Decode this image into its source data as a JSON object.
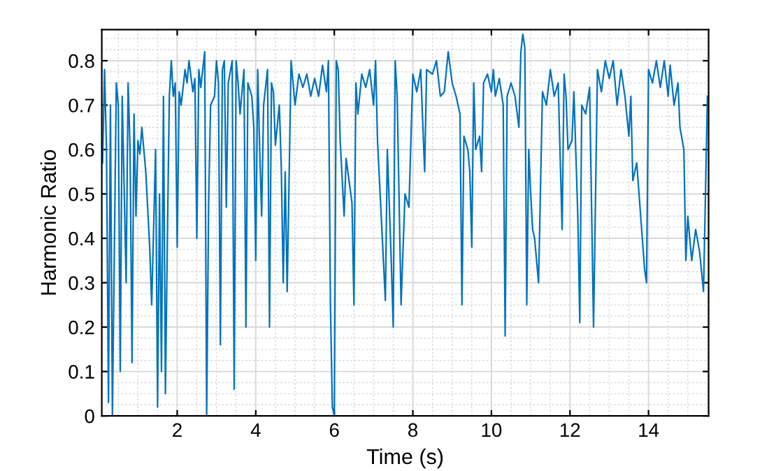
{
  "chart_data": {
    "type": "line",
    "xlabel": "Time (s)",
    "ylabel": "Harmonic Ratio",
    "xlim": [
      0.08,
      15.53
    ],
    "ylim": [
      0,
      0.87
    ],
    "xticks": [
      2,
      4,
      6,
      8,
      10,
      12,
      14
    ],
    "yticks": [
      0,
      0.1,
      0.2,
      0.3,
      0.4,
      0.5,
      0.6,
      0.7,
      0.8
    ],
    "grid": true,
    "marker": "none",
    "line_style": "solid",
    "series": [
      {
        "color": "#0072bd",
        "x": [
          0.1,
          0.15,
          0.2,
          0.25,
          0.3,
          0.35,
          0.45,
          0.5,
          0.55,
          0.6,
          0.7,
          0.75,
          0.8,
          0.85,
          0.9,
          0.95,
          1.0,
          1.05,
          1.1,
          1.2,
          1.3,
          1.35,
          1.45,
          1.5,
          1.55,
          1.6,
          1.65,
          1.7,
          1.75,
          1.8,
          1.85,
          1.9,
          1.95,
          2.0,
          2.05,
          2.1,
          2.2,
          2.25,
          2.3,
          2.4,
          2.45,
          2.5,
          2.55,
          2.6,
          2.7,
          2.75,
          2.8,
          2.85,
          2.95,
          3.0,
          3.05,
          3.1,
          3.15,
          3.2,
          3.25,
          3.3,
          3.4,
          3.45,
          3.5,
          3.55,
          3.6,
          3.7,
          3.75,
          3.8,
          3.9,
          3.95,
          4.0,
          4.05,
          4.1,
          4.15,
          4.2,
          4.3,
          4.35,
          4.4,
          4.45,
          4.5,
          4.6,
          4.65,
          4.7,
          4.75,
          4.8,
          4.9,
          4.95,
          5.0,
          5.1,
          5.2,
          5.3,
          5.4,
          5.5,
          5.6,
          5.7,
          5.8,
          5.85,
          5.9,
          5.95,
          6.0,
          6.05,
          6.1,
          6.15,
          6.25,
          6.3,
          6.45,
          6.5,
          6.55,
          6.6,
          6.7,
          6.8,
          6.9,
          7.0,
          7.05,
          7.1,
          7.2,
          7.3,
          7.35,
          7.45,
          7.5,
          7.55,
          7.6,
          7.7,
          7.8,
          7.9,
          8.0,
          8.1,
          8.2,
          8.3,
          8.35,
          8.5,
          8.6,
          8.7,
          8.8,
          8.9,
          9.0,
          9.1,
          9.2,
          9.25,
          9.3,
          9.4,
          9.45,
          9.5,
          9.55,
          9.6,
          9.7,
          9.75,
          9.8,
          9.9,
          10.0,
          10.05,
          10.1,
          10.2,
          10.3,
          10.35,
          10.4,
          10.5,
          10.6,
          10.7,
          10.75,
          10.8,
          10.85,
          10.9,
          10.95,
          11.0,
          11.05,
          11.1,
          11.2,
          11.3,
          11.4,
          11.5,
          11.6,
          11.7,
          11.8,
          11.85,
          11.9,
          11.95,
          12.05,
          12.1,
          12.2,
          12.25,
          12.3,
          12.4,
          12.5,
          12.6,
          12.7,
          12.8,
          12.9,
          13.0,
          13.1,
          13.2,
          13.3,
          13.4,
          13.5,
          13.55,
          13.6,
          13.7,
          13.8,
          13.9,
          13.95,
          14.0,
          14.1,
          14.2,
          14.3,
          14.4,
          14.5,
          14.55,
          14.65,
          14.75,
          14.8,
          14.9,
          14.95,
          15.0,
          15.1,
          15.2,
          15.3,
          15.4,
          15.5
        ],
        "values": [
          0.57,
          0.78,
          0.6,
          0.03,
          0.7,
          0.0,
          0.75,
          0.7,
          0.1,
          0.72,
          0.3,
          0.75,
          0.6,
          0.12,
          0.68,
          0.45,
          0.62,
          0.59,
          0.65,
          0.55,
          0.38,
          0.25,
          0.6,
          0.02,
          0.5,
          0.1,
          0.72,
          0.05,
          0.4,
          0.72,
          0.8,
          0.72,
          0.75,
          0.38,
          0.73,
          0.7,
          0.78,
          0.75,
          0.8,
          0.73,
          0.76,
          0.4,
          0.78,
          0.74,
          0.82,
          0.0,
          0.48,
          0.7,
          0.72,
          0.8,
          0.75,
          0.16,
          0.78,
          0.8,
          0.47,
          0.75,
          0.8,
          0.06,
          0.8,
          0.75,
          0.68,
          0.78,
          0.2,
          0.75,
          0.72,
          0.65,
          0.35,
          0.78,
          0.6,
          0.45,
          0.7,
          0.78,
          0.2,
          0.75,
          0.73,
          0.61,
          0.7,
          0.56,
          0.3,
          0.55,
          0.28,
          0.8,
          0.75,
          0.7,
          0.77,
          0.74,
          0.77,
          0.72,
          0.76,
          0.72,
          0.79,
          0.73,
          0.8,
          0.26,
          0.02,
          0.0,
          0.8,
          0.78,
          0.62,
          0.45,
          0.58,
          0.48,
          0.25,
          0.75,
          0.68,
          0.77,
          0.74,
          0.78,
          0.7,
          0.8,
          0.62,
          0.44,
          0.26,
          0.6,
          0.35,
          0.2,
          0.8,
          0.72,
          0.25,
          0.5,
          0.47,
          0.77,
          0.73,
          0.78,
          0.55,
          0.78,
          0.77,
          0.8,
          0.72,
          0.73,
          0.82,
          0.75,
          0.72,
          0.68,
          0.25,
          0.63,
          0.6,
          0.55,
          0.38,
          0.75,
          0.6,
          0.63,
          0.55,
          0.75,
          0.77,
          0.73,
          0.78,
          0.72,
          0.76,
          0.7,
          0.18,
          0.72,
          0.75,
          0.72,
          0.65,
          0.82,
          0.86,
          0.83,
          0.25,
          0.6,
          0.5,
          0.42,
          0.4,
          0.3,
          0.73,
          0.7,
          0.78,
          0.72,
          0.75,
          0.42,
          0.77,
          0.72,
          0.6,
          0.62,
          0.73,
          0.45,
          0.21,
          0.7,
          0.68,
          0.74,
          0.2,
          0.78,
          0.73,
          0.8,
          0.76,
          0.8,
          0.7,
          0.78,
          0.72,
          0.63,
          0.72,
          0.53,
          0.57,
          0.45,
          0.33,
          0.3,
          0.78,
          0.75,
          0.8,
          0.74,
          0.8,
          0.72,
          0.79,
          0.7,
          0.75,
          0.65,
          0.6,
          0.35,
          0.45,
          0.35,
          0.42,
          0.37,
          0.28,
          0.72
        ]
      }
    ]
  }
}
